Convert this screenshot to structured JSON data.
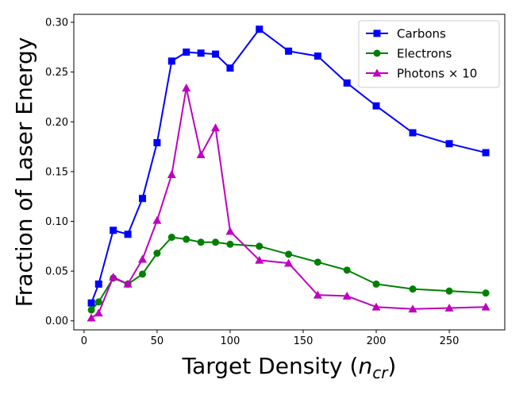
{
  "chart_data": {
    "type": "line",
    "title": "",
    "xlabel": "Target Density (",
    "xlabel_math": "n",
    "xlabel_sub": "cr",
    "xlabel_suffix": ")",
    "ylabel": "Fraction of Laser Energy",
    "xlim": [
      -7,
      288
    ],
    "ylim": [
      -0.009,
      0.308
    ],
    "x_ticks": [
      0,
      50,
      100,
      150,
      200,
      250
    ],
    "x_tick_labels": [
      "0",
      "50",
      "100",
      "150",
      "200",
      "250"
    ],
    "y_ticks": [
      0.0,
      0.05,
      0.1,
      0.15,
      0.2,
      0.25,
      0.3
    ],
    "y_tick_labels": [
      "0.00",
      "0.05",
      "0.10",
      "0.15",
      "0.20",
      "0.25",
      "0.30"
    ],
    "grid": false,
    "legend_position": "top-right",
    "x": [
      5,
      10,
      20,
      30,
      40,
      50,
      60,
      70,
      80,
      90,
      100,
      120,
      140,
      160,
      180,
      200,
      225,
      250,
      275
    ],
    "series": [
      {
        "name": "Carbons",
        "color": "#0000ff",
        "marker": "square",
        "values": [
          0.018,
          0.037,
          0.091,
          0.087,
          0.123,
          0.179,
          0.261,
          0.27,
          0.269,
          0.268,
          0.254,
          0.293,
          0.271,
          0.266,
          0.239,
          0.216,
          0.189,
          0.178,
          0.169
        ]
      },
      {
        "name": "Electrons",
        "color": "#008000",
        "marker": "circle",
        "values": [
          0.011,
          0.019,
          0.043,
          0.037,
          0.047,
          0.068,
          0.084,
          0.082,
          0.079,
          0.079,
          0.077,
          0.075,
          0.067,
          0.059,
          0.051,
          0.037,
          0.032,
          0.03,
          0.028
        ]
      },
      {
        "name": "Photons × 10",
        "color": "#bf00bf",
        "marker": "triangle",
        "values": [
          0.003,
          0.008,
          0.044,
          0.037,
          0.062,
          0.101,
          0.147,
          0.234,
          0.167,
          0.194,
          0.09,
          0.061,
          0.058,
          0.026,
          0.025,
          0.014,
          0.012,
          0.013,
          0.014
        ]
      }
    ]
  }
}
